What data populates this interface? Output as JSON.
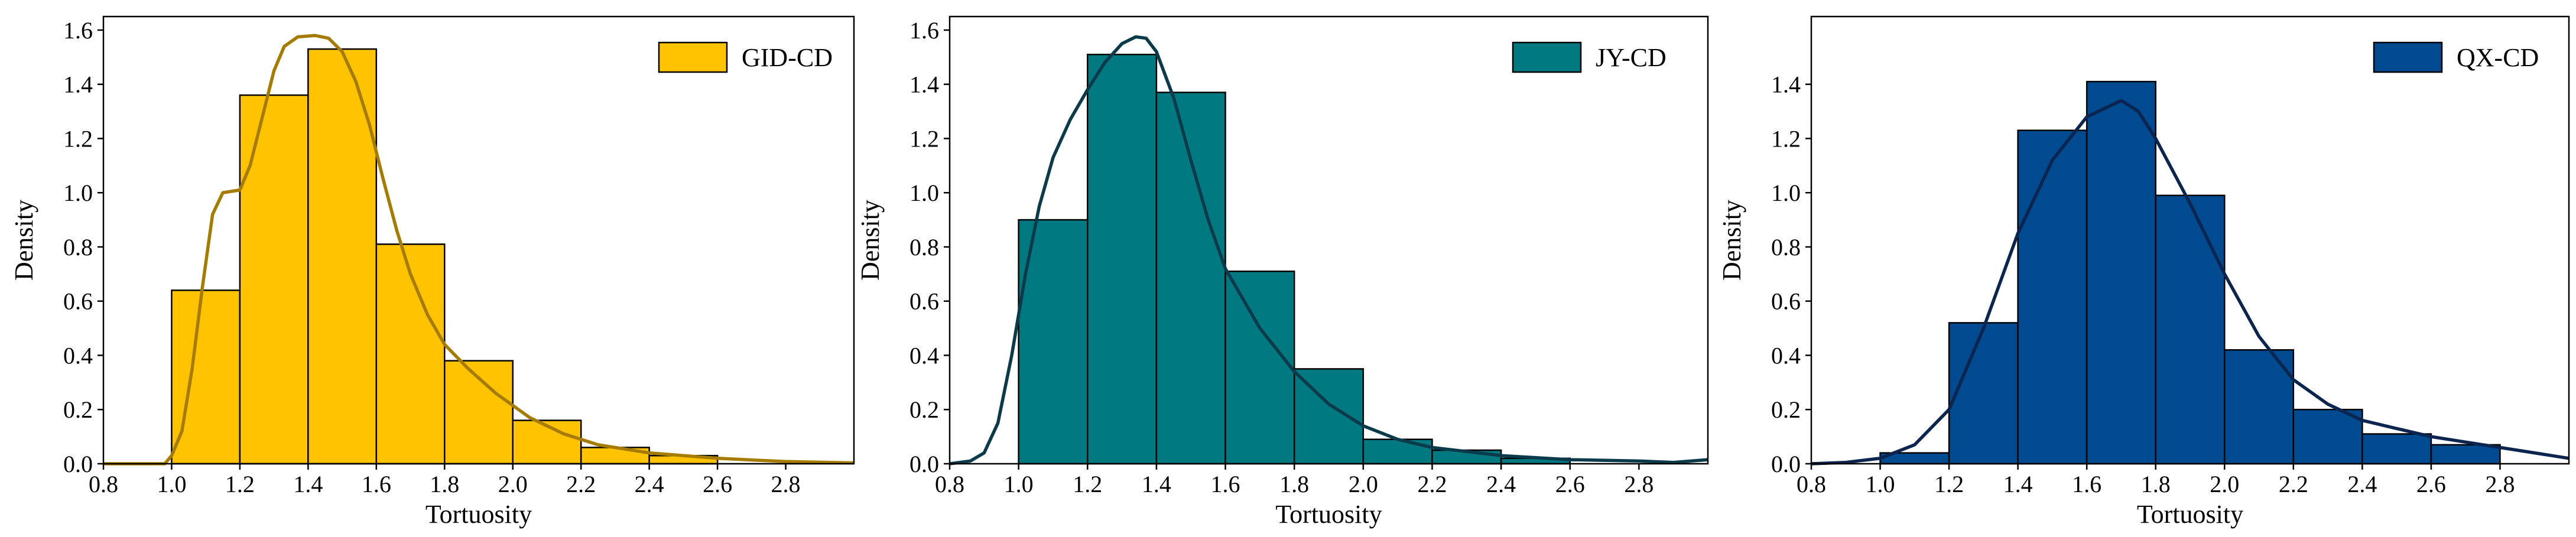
{
  "chart_data": [
    {
      "type": "bar",
      "xlabel": "Tortuosity",
      "ylabel": "Density",
      "xlim": [
        0.8,
        3.0
      ],
      "ylim": [
        0,
        1.65
      ],
      "xticks": [
        "0.8",
        "1.0",
        "1.2",
        "1.4",
        "1.6",
        "1.8",
        "2.0",
        "2.2",
        "2.4",
        "2.6",
        "2.8"
      ],
      "yticks": [
        "0.0",
        "0.2",
        "0.4",
        "0.6",
        "0.8",
        "1.0",
        "1.2",
        "1.4",
        "1.6"
      ],
      "grid": false,
      "legend_position": "top-right",
      "bin_edges": [
        1.0,
        1.2,
        1.4,
        1.6,
        1.8,
        2.0,
        2.2,
        2.4,
        2.6
      ],
      "series": [
        {
          "name": "GID-CD",
          "values": [
            0.64,
            1.36,
            1.53,
            0.81,
            0.38,
            0.16,
            0.06,
            0.03
          ],
          "color": "#FFC300",
          "kde_color": "#A67C00",
          "kde": [
            [
              0.8,
              0
            ],
            [
              0.98,
              0
            ],
            [
              1.0,
              0.03
            ],
            [
              1.03,
              0.12
            ],
            [
              1.06,
              0.35
            ],
            [
              1.09,
              0.65
            ],
            [
              1.12,
              0.92
            ],
            [
              1.15,
              1.0
            ],
            [
              1.2,
              1.01
            ],
            [
              1.23,
              1.1
            ],
            [
              1.27,
              1.3
            ],
            [
              1.3,
              1.45
            ],
            [
              1.33,
              1.54
            ],
            [
              1.37,
              1.575
            ],
            [
              1.42,
              1.58
            ],
            [
              1.46,
              1.57
            ],
            [
              1.5,
              1.52
            ],
            [
              1.54,
              1.41
            ],
            [
              1.58,
              1.25
            ],
            [
              1.62,
              1.05
            ],
            [
              1.66,
              0.86
            ],
            [
              1.7,
              0.7
            ],
            [
              1.75,
              0.55
            ],
            [
              1.8,
              0.44
            ],
            [
              1.87,
              0.35
            ],
            [
              1.95,
              0.26
            ],
            [
              2.05,
              0.17
            ],
            [
              2.15,
              0.11
            ],
            [
              2.25,
              0.07
            ],
            [
              2.4,
              0.04
            ],
            [
              2.6,
              0.02
            ],
            [
              2.8,
              0.008
            ],
            [
              3.0,
              0.003
            ]
          ]
        },
        {
          "name": "JY-CD",
          "values": [
            0.9,
            1.51,
            1.37,
            0.71,
            0.35,
            0.09,
            0.05,
            0.02
          ],
          "color": "#007A80",
          "kde_color": "#0B3B4A",
          "kde": [
            [
              0.8,
              0
            ],
            [
              0.86,
              0.01
            ],
            [
              0.9,
              0.04
            ],
            [
              0.94,
              0.15
            ],
            [
              0.98,
              0.4
            ],
            [
              1.02,
              0.7
            ],
            [
              1.06,
              0.95
            ],
            [
              1.1,
              1.13
            ],
            [
              1.15,
              1.27
            ],
            [
              1.2,
              1.38
            ],
            [
              1.25,
              1.48
            ],
            [
              1.3,
              1.55
            ],
            [
              1.34,
              1.575
            ],
            [
              1.37,
              1.57
            ],
            [
              1.4,
              1.52
            ],
            [
              1.45,
              1.35
            ],
            [
              1.5,
              1.12
            ],
            [
              1.55,
              0.9
            ],
            [
              1.6,
              0.72
            ],
            [
              1.7,
              0.5
            ],
            [
              1.8,
              0.34
            ],
            [
              1.9,
              0.22
            ],
            [
              2.0,
              0.14
            ],
            [
              2.1,
              0.09
            ],
            [
              2.2,
              0.06
            ],
            [
              2.4,
              0.03
            ],
            [
              2.6,
              0.015
            ],
            [
              2.8,
              0.01
            ],
            [
              2.9,
              0.005
            ],
            [
              3.0,
              0.015
            ]
          ]
        },
        {
          "name": "QX-CD",
          "values": [
            0.04,
            0.52,
            1.23,
            1.41,
            0.99,
            0.42,
            0.2,
            0.11,
            0.07
          ],
          "bin_edges": [
            1.0,
            1.2,
            1.4,
            1.6,
            1.8,
            2.0,
            2.2,
            2.4,
            2.6,
            2.8
          ],
          "color": "#004A8F",
          "kde_color": "#0B2550",
          "kde": [
            [
              0.8,
              0
            ],
            [
              0.9,
              0.005
            ],
            [
              1.0,
              0.02
            ],
            [
              1.1,
              0.07
            ],
            [
              1.2,
              0.2
            ],
            [
              1.3,
              0.5
            ],
            [
              1.4,
              0.85
            ],
            [
              1.5,
              1.12
            ],
            [
              1.6,
              1.28
            ],
            [
              1.7,
              1.34
            ],
            [
              1.75,
              1.3
            ],
            [
              1.8,
              1.2
            ],
            [
              1.9,
              0.96
            ],
            [
              2.0,
              0.7
            ],
            [
              2.1,
              0.47
            ],
            [
              2.2,
              0.31
            ],
            [
              2.3,
              0.22
            ],
            [
              2.4,
              0.16
            ],
            [
              2.5,
              0.13
            ],
            [
              2.6,
              0.1
            ],
            [
              2.7,
              0.08
            ],
            [
              2.8,
              0.06
            ],
            [
              2.9,
              0.04
            ],
            [
              3.0,
              0.02
            ]
          ]
        }
      ]
    }
  ]
}
